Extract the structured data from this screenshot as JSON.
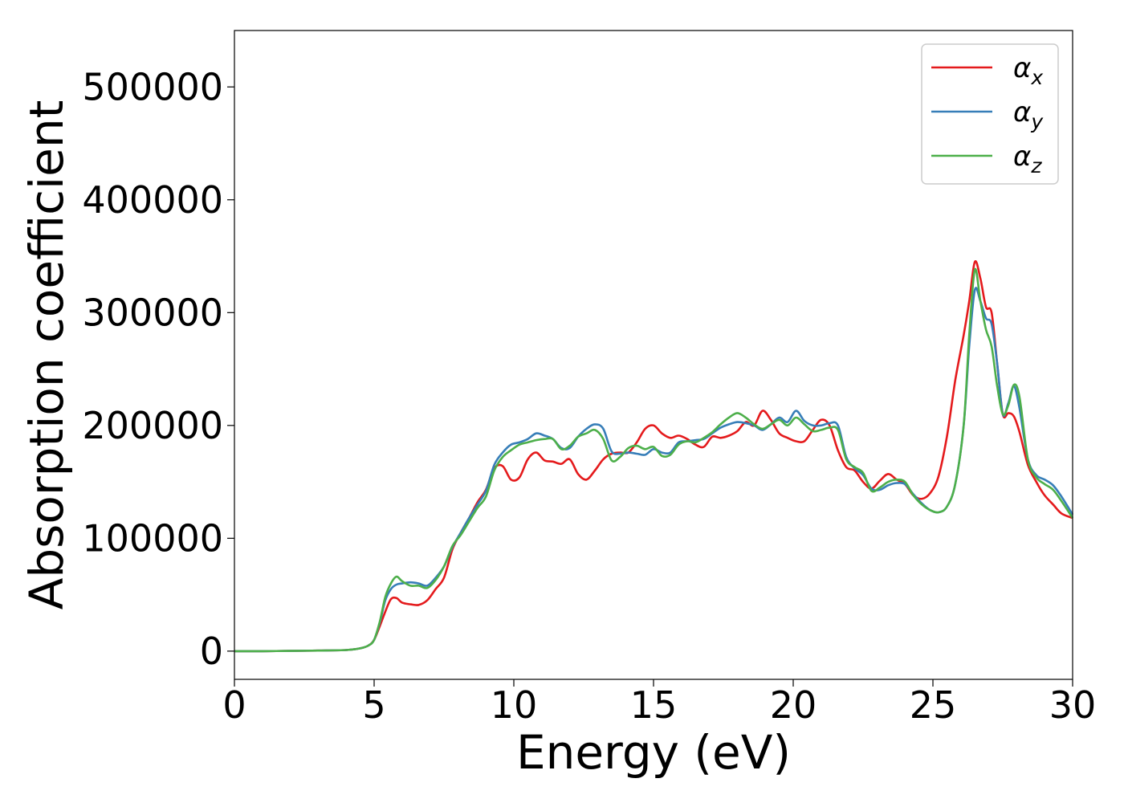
{
  "chart_data": {
    "type": "line",
    "title": "",
    "xlabel": "Energy (eV)",
    "ylabel": "Absorption coefficient",
    "xlim": [
      0,
      30
    ],
    "ylim": [
      -25000,
      550000
    ],
    "xticks": [
      0,
      5,
      10,
      15,
      20,
      25,
      30
    ],
    "yticks": [
      0,
      100000,
      200000,
      300000,
      400000,
      500000
    ],
    "grid": false,
    "legend_position": "top-right",
    "series": [
      {
        "name": "α_x",
        "symbol": "α",
        "subscript": "x",
        "color": "#e41a1c",
        "x": [
          0,
          1,
          2,
          3,
          4,
          4.5,
          4.8,
          5.0,
          5.2,
          5.4,
          5.6,
          5.8,
          6.0,
          6.3,
          6.6,
          6.9,
          7.2,
          7.5,
          7.8,
          8.1,
          8.4,
          8.7,
          9.0,
          9.3,
          9.6,
          9.9,
          10.2,
          10.5,
          10.8,
          11.1,
          11.4,
          11.7,
          12.0,
          12.3,
          12.6,
          12.9,
          13.2,
          13.5,
          13.8,
          14.1,
          14.4,
          14.7,
          15.0,
          15.3,
          15.6,
          15.9,
          16.2,
          16.5,
          16.8,
          17.1,
          17.4,
          17.7,
          18.0,
          18.3,
          18.6,
          18.9,
          19.2,
          19.5,
          19.8,
          20.1,
          20.4,
          20.7,
          21.0,
          21.3,
          21.6,
          21.9,
          22.2,
          22.5,
          22.8,
          23.1,
          23.4,
          23.7,
          24.0,
          24.3,
          24.6,
          24.9,
          25.2,
          25.5,
          25.8,
          26.1,
          26.3,
          26.5,
          26.7,
          26.9,
          27.1,
          27.3,
          27.5,
          27.7,
          27.9,
          28.1,
          28.4,
          28.7,
          29.0,
          29.3,
          29.6,
          30.0
        ],
        "y": [
          0,
          0,
          200,
          500,
          1000,
          2500,
          5000,
          10000,
          22000,
          35000,
          46000,
          47000,
          43000,
          41500,
          41000,
          45000,
          55000,
          65000,
          90000,
          105000,
          118000,
          132000,
          143000,
          162000,
          164000,
          152000,
          154000,
          170000,
          176000,
          169000,
          168000,
          166000,
          170000,
          157000,
          152000,
          160000,
          170000,
          175000,
          176000,
          176000,
          185000,
          197000,
          200000,
          193000,
          189000,
          191000,
          188000,
          183000,
          181000,
          190000,
          189000,
          191000,
          195000,
          203000,
          200000,
          213000,
          205000,
          193000,
          189000,
          186000,
          186000,
          196000,
          205000,
          200000,
          178000,
          163000,
          160000,
          150000,
          144000,
          151000,
          157000,
          152000,
          148000,
          138000,
          135000,
          140000,
          155000,
          190000,
          240000,
          280000,
          310000,
          345000,
          330000,
          305000,
          300000,
          255000,
          210000,
          211000,
          208000,
          194000,
          165000,
          150000,
          138000,
          130000,
          122000,
          118000
        ]
      },
      {
        "name": "α_y",
        "symbol": "α",
        "subscript": "y",
        "color": "#377eb8",
        "x": [
          0,
          1,
          2,
          3,
          4,
          4.5,
          4.8,
          5.0,
          5.2,
          5.4,
          5.6,
          5.8,
          6.0,
          6.3,
          6.6,
          6.9,
          7.2,
          7.5,
          7.8,
          8.1,
          8.4,
          8.7,
          9.0,
          9.3,
          9.6,
          9.9,
          10.2,
          10.5,
          10.8,
          11.1,
          11.4,
          11.7,
          12.0,
          12.3,
          12.6,
          12.9,
          13.2,
          13.5,
          13.8,
          14.1,
          14.4,
          14.7,
          15.0,
          15.3,
          15.6,
          15.9,
          16.2,
          16.5,
          16.8,
          17.1,
          17.4,
          17.7,
          18.0,
          18.3,
          18.6,
          18.9,
          19.2,
          19.5,
          19.8,
          20.1,
          20.4,
          20.7,
          21.0,
          21.3,
          21.6,
          21.9,
          22.2,
          22.5,
          22.8,
          23.1,
          23.4,
          23.7,
          24.0,
          24.3,
          24.6,
          24.9,
          25.2,
          25.5,
          25.8,
          26.1,
          26.3,
          26.5,
          26.7,
          26.9,
          27.1,
          27.3,
          27.5,
          27.7,
          27.9,
          28.1,
          28.4,
          28.7,
          29.0,
          29.3,
          29.6,
          30.0
        ],
        "y": [
          0,
          0,
          200,
          500,
          1000,
          2500,
          5000,
          10000,
          25000,
          45000,
          55000,
          59000,
          60000,
          61000,
          60000,
          58000,
          65000,
          75000,
          92000,
          105000,
          118000,
          130000,
          142000,
          165000,
          176000,
          183000,
          185000,
          188000,
          193000,
          191000,
          188000,
          180000,
          180000,
          190000,
          197000,
          201000,
          197000,
          177000,
          175000,
          176000,
          175000,
          174000,
          179000,
          176000,
          176000,
          185000,
          186000,
          187000,
          188000,
          193000,
          198000,
          201000,
          203000,
          202000,
          200000,
          196000,
          201000,
          207000,
          203000,
          213000,
          204000,
          200000,
          200000,
          202000,
          200000,
          172000,
          162000,
          156000,
          144000,
          143000,
          147000,
          149000,
          148000,
          139000,
          131000,
          125000,
          123000,
          128000,
          148000,
          200000,
          270000,
          320000,
          310000,
          295000,
          290000,
          255000,
          210000,
          220000,
          235000,
          215000,
          170000,
          156000,
          152000,
          147000,
          137000,
          121000
        ]
      },
      {
        "name": "α_z",
        "symbol": "α",
        "subscript": "z",
        "color": "#4daf4a",
        "x": [
          0,
          1,
          2,
          3,
          4,
          4.5,
          4.8,
          5.0,
          5.2,
          5.4,
          5.6,
          5.8,
          6.0,
          6.3,
          6.6,
          6.9,
          7.2,
          7.5,
          7.8,
          8.1,
          8.4,
          8.7,
          9.0,
          9.3,
          9.6,
          9.9,
          10.2,
          10.5,
          10.8,
          11.1,
          11.4,
          11.7,
          12.0,
          12.3,
          12.6,
          12.9,
          13.2,
          13.5,
          13.8,
          14.1,
          14.4,
          14.7,
          15.0,
          15.3,
          15.6,
          15.9,
          16.2,
          16.5,
          16.8,
          17.1,
          17.4,
          17.7,
          18.0,
          18.3,
          18.6,
          18.9,
          19.2,
          19.5,
          19.8,
          20.1,
          20.4,
          20.7,
          21.0,
          21.3,
          21.6,
          21.9,
          22.2,
          22.5,
          22.8,
          23.1,
          23.4,
          23.7,
          24.0,
          24.3,
          24.6,
          24.9,
          25.2,
          25.5,
          25.8,
          26.1,
          26.3,
          26.5,
          26.7,
          26.9,
          27.1,
          27.3,
          27.5,
          27.7,
          27.9,
          28.1,
          28.4,
          28.7,
          29.0,
          29.3,
          29.6,
          30.0
        ],
        "y": [
          0,
          0,
          200,
          500,
          1000,
          2500,
          5000,
          10000,
          26000,
          48000,
          60000,
          66000,
          62000,
          58000,
          58000,
          56000,
          63000,
          75000,
          93000,
          103000,
          115000,
          127000,
          137000,
          160000,
          172000,
          178000,
          183000,
          185000,
          187000,
          188000,
          188000,
          179000,
          182000,
          190000,
          193000,
          196000,
          188000,
          169000,
          172000,
          180000,
          182000,
          179000,
          181000,
          173000,
          174000,
          183000,
          186000,
          185000,
          189000,
          194000,
          201000,
          207000,
          211000,
          207000,
          201000,
          197000,
          201000,
          205000,
          200000,
          207000,
          201000,
          195000,
          196000,
          198000,
          196000,
          170000,
          163000,
          158000,
          142000,
          145000,
          150000,
          152000,
          150000,
          138000,
          130000,
          125000,
          123000,
          128000,
          148000,
          200000,
          280000,
          338000,
          310000,
          285000,
          270000,
          235000,
          210000,
          218000,
          236000,
          225000,
          170000,
          154000,
          148000,
          143000,
          133000,
          118000
        ]
      }
    ]
  }
}
